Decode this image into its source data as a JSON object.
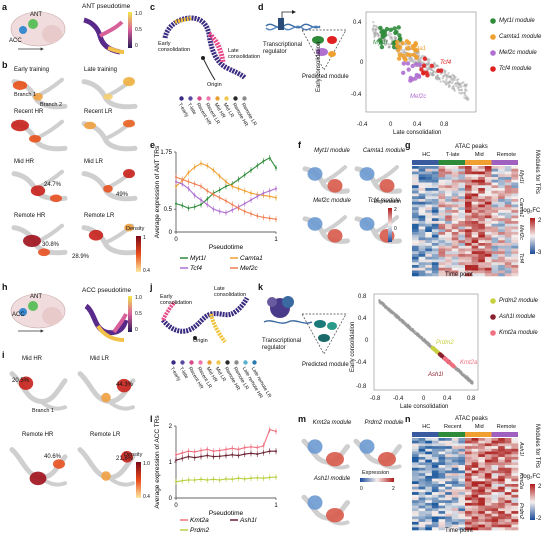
{
  "panel_letters": [
    "a",
    "b",
    "c",
    "d",
    "e",
    "f",
    "g",
    "h",
    "i",
    "j",
    "k",
    "l",
    "m",
    "n"
  ],
  "top": {
    "a": {
      "acc": "ACC",
      "ant": "ANT",
      "title": "ANT pseudotime",
      "cb": [
        "1.0",
        "0.5",
        "0"
      ]
    },
    "b": {
      "labels": [
        "Early training",
        "Late training",
        "Recent HR",
        "Recent LR",
        "Mid HR",
        "Mid LR",
        "Remote HR",
        "Remote LR"
      ],
      "branch1": "Branch 1",
      "branch2": "Branch 2",
      "pct_mid_hr": "24.7%",
      "pct_mid_lr": "49%",
      "pct_remote_hr": "30.8%",
      "pct_remote_lr": "28.9%",
      "density_title": "Density",
      "density_ticks": [
        "1",
        "0.4"
      ]
    },
    "c": {
      "early": "Early consolidation",
      "late": "Late consolidation",
      "origin": "Origin",
      "legend": [
        "T-early",
        "T-late",
        "Recent HR",
        "Recent LR",
        "Mid HR",
        "Mid LR",
        "Remote HR",
        "Remote LR"
      ]
    },
    "d": {
      "regulator": "Transcriptional regulator",
      "module": "Predicted module",
      "legend": [
        "Myt1l module",
        "Camta1 module",
        "Mef2c module",
        "Tcf4 module"
      ],
      "gene_labels": [
        "Myt1l",
        "Camta1",
        "Tcf4",
        "Mef2c"
      ],
      "xlabel": "Late consolidation",
      "ylabel": "Early consolidation",
      "xticks": [
        "-0.4",
        "0",
        "0.4",
        "0.8"
      ],
      "yticks": [
        "0.4",
        "0",
        "-0.4"
      ]
    },
    "f": {
      "modules": [
        "Myt1l module",
        "Camta1 module",
        "Mef2c module",
        "Tcf4 module"
      ],
      "exp_title": "Expression",
      "exp_ticks": [
        "2",
        "0"
      ]
    },
    "g": {
      "title": "ATAC peaks",
      "cols": [
        "HC",
        "T-late",
        "Mid",
        "Remote"
      ],
      "xlabel": "Time point",
      "side_title": "Modules for TRs",
      "side": [
        "Myt1l",
        "Camta1",
        "Mef2c",
        "Tcf4"
      ],
      "cb_title": "log₂FC",
      "cb_ticks": [
        "2",
        "-3"
      ]
    }
  },
  "bottom": {
    "h": {
      "acc": "ACC",
      "ant": "ANT",
      "title": "ACC pseudotime",
      "cb": [
        "1.0",
        "0.5",
        "0"
      ]
    },
    "i": {
      "labels": [
        "Mid HR",
        "Mid LR",
        "Remote HR",
        "Remote LR"
      ],
      "branch1": "Branch 1",
      "pct_mid_hr": "20.5%",
      "pct_mid_lr": "44.3%",
      "pct_remote_hr": "40.6%",
      "pct_remote_lr": "21.8%",
      "density_title": "Density",
      "density_ticks": [
        "1.0",
        "0.4"
      ]
    },
    "j": {
      "early": "Early consolidation",
      "late": "Late consolidation",
      "origin": "Origin",
      "legend": [
        "T-early",
        "T-late",
        "Recent HR",
        "Recent LR",
        "Mid HR",
        "Mid LR",
        "Remote HR",
        "Remote LR",
        "Late remote HR",
        "Late remote LR"
      ]
    },
    "k": {
      "regulator": "Transcriptional regulator",
      "module": "Predicted module",
      "legend": [
        "Prdm2 module",
        "Ash1l module",
        "Kmt2a module"
      ],
      "gene_labels": [
        "Prdm2",
        "Kmt2a",
        "Ash1l"
      ],
      "xlabel": "Late consolidation",
      "ylabel": "Early consolidation",
      "xticks": [
        "-0.8",
        "-0.4",
        "0",
        "0.4",
        "0.8"
      ],
      "yticks": [
        "0.8",
        "0.4",
        "0",
        "-0.4",
        "-0.8"
      ]
    },
    "m": {
      "modules": [
        "Kmt2a module",
        "Prdm2 module",
        "Ash1l module"
      ],
      "exp_title": "Expression",
      "exp_ticks": [
        "0",
        "2"
      ]
    },
    "n": {
      "title": "ATAC peaks",
      "cols": [
        "HC",
        "Recent",
        "Mid",
        "Remote"
      ],
      "xlabel": "Time point",
      "side_title": "Modules for TRs",
      "side": [
        "Ash1l",
        "Kmt2a",
        "Prdm2"
      ],
      "cb_title": "log₂FC",
      "cb_ticks": [
        "2",
        "-2"
      ]
    }
  },
  "colors": {
    "myt1l": "#2e8b3a",
    "camta1": "#f0a030",
    "mef2c": "#b070d0",
    "tcf4": "#e02020",
    "prdm2": "#c8d040",
    "ash1l": "#8b2030",
    "kmt2a": "#f07080"
  },
  "chart_data": [
    {
      "type": "line",
      "panel": "e",
      "xlabel": "Pseudotime",
      "ylabel": "Average expression of ANT TRs",
      "ylim": [
        0,
        1.75
      ],
      "xlim": [
        0,
        1
      ],
      "yticks": [
        "0",
        "0.5",
        "1.75"
      ],
      "xticks": [
        "0",
        "1"
      ],
      "x": [
        0,
        0.0625,
        0.125,
        0.1875,
        0.25,
        0.3125,
        0.375,
        0.4375,
        0.5,
        0.5625,
        0.625,
        0.6875,
        0.75,
        0.8125,
        0.875,
        0.9375,
        1.0
      ],
      "series": [
        {
          "name": "Myt1l",
          "color": "#2e8b3a",
          "values": [
            0.62,
            0.58,
            0.52,
            0.55,
            0.6,
            0.72,
            0.85,
            0.92,
            1.0,
            1.05,
            1.15,
            1.25,
            1.35,
            1.45,
            1.55,
            1.62,
            1.4
          ]
        },
        {
          "name": "Camta1",
          "color": "#f0a030",
          "values": [
            1.0,
            1.12,
            1.3,
            1.42,
            1.5,
            1.45,
            1.35,
            1.22,
            1.1,
            1.0,
            0.95,
            0.9,
            0.85,
            0.82,
            0.8,
            0.78,
            0.75
          ]
        },
        {
          "name": "Tcf4",
          "color": "#b070d0",
          "values": [
            1.1,
            1.05,
            0.95,
            0.8,
            0.7,
            0.6,
            0.5,
            0.45,
            0.42,
            0.48,
            0.55,
            0.62,
            0.7,
            0.78,
            0.85,
            0.9,
            0.95
          ]
        },
        {
          "name": "Mef2c",
          "color": "#f07f50",
          "values": [
            1.2,
            1.15,
            1.1,
            1.05,
            1.0,
            0.9,
            0.82,
            0.75,
            0.68,
            0.6,
            0.52,
            0.45,
            0.4,
            0.35,
            0.32,
            0.3,
            0.28
          ]
        }
      ]
    },
    {
      "type": "line",
      "panel": "l",
      "xlabel": "Pseudotime",
      "ylabel": "Average expression of ACC TRs",
      "ylim": [
        0,
        2
      ],
      "xlim": [
        0,
        1
      ],
      "yticks": [
        "0",
        "1",
        "2"
      ],
      "xticks": [
        "0",
        "1"
      ],
      "x": [
        0,
        0.0625,
        0.125,
        0.1875,
        0.25,
        0.3125,
        0.375,
        0.4375,
        0.5,
        0.5625,
        0.625,
        0.6875,
        0.75,
        0.8125,
        0.875,
        0.9375,
        1.0
      ],
      "series": [
        {
          "name": "Kmt2a",
          "color": "#f07080",
          "values": [
            1.2,
            1.25,
            1.3,
            1.28,
            1.32,
            1.35,
            1.3,
            1.32,
            1.35,
            1.38,
            1.35,
            1.4,
            1.42,
            1.4,
            1.45,
            1.9,
            1.85
          ]
        },
        {
          "name": "Ash1l",
          "color": "#6b2030",
          "values": [
            1.05,
            1.1,
            1.15,
            1.12,
            1.15,
            1.18,
            1.15,
            1.16,
            1.18,
            1.2,
            1.18,
            1.22,
            1.24,
            1.22,
            1.26,
            1.3,
            1.3
          ]
        },
        {
          "name": "Prdm2",
          "color": "#b8d040",
          "values": [
            0.45,
            0.48,
            0.5,
            0.5,
            0.52,
            0.5,
            0.52,
            0.5,
            0.53,
            0.52,
            0.55,
            0.53,
            0.55,
            0.56,
            0.55,
            0.57,
            0.58
          ]
        }
      ]
    }
  ]
}
